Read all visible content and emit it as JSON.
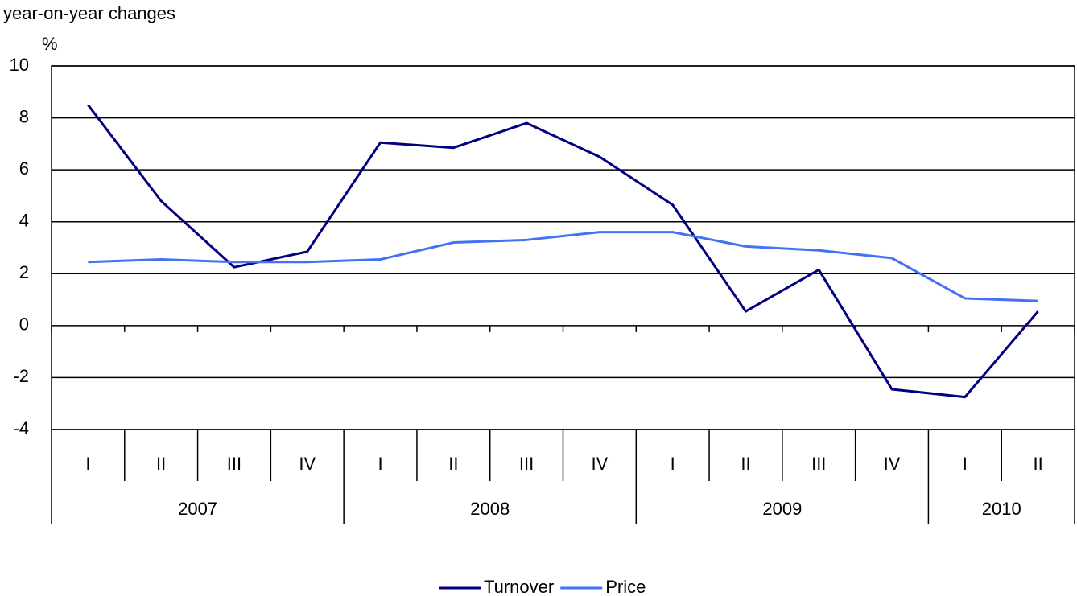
{
  "chart_data": {
    "type": "line",
    "y_label_lines": [
      "year-on-year changes",
      "%"
    ],
    "categories": [
      "I",
      "II",
      "III",
      "IV",
      "I",
      "II",
      "III",
      "IV",
      "I",
      "II",
      "III",
      "IV",
      "I",
      "II"
    ],
    "x_groups": [
      {
        "label": "2007",
        "count": 4
      },
      {
        "label": "2008",
        "count": 4
      },
      {
        "label": "2009",
        "count": 4
      },
      {
        "label": "2010",
        "count": 2
      }
    ],
    "series": [
      {
        "name": "Turnover",
        "color": "#000080",
        "values": [
          8.5,
          4.8,
          2.25,
          2.85,
          7.05,
          6.85,
          7.8,
          6.5,
          4.65,
          0.55,
          2.15,
          -2.45,
          -2.75,
          0.55
        ]
      },
      {
        "name": "Price",
        "color": "#4472f4",
        "values": [
          2.45,
          2.55,
          2.45,
          2.45,
          2.55,
          3.2,
          3.3,
          3.6,
          3.6,
          3.05,
          2.9,
          2.6,
          1.05,
          0.95
        ]
      }
    ],
    "ylim": [
      -4,
      10
    ],
    "yticks": [
      -4,
      -2,
      0,
      2,
      4,
      6,
      8,
      10
    ],
    "grid": true,
    "legend": "bottom"
  }
}
